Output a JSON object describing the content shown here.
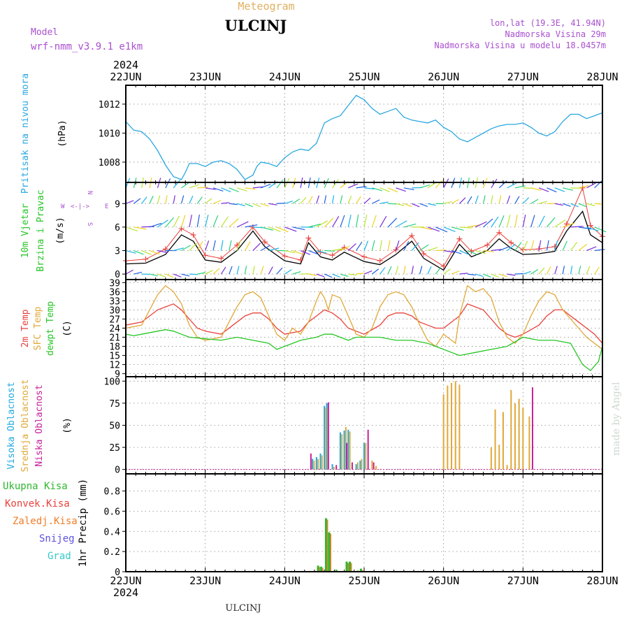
{
  "header": {
    "meteogram_label": "Meteogram",
    "station": "ULCINJ",
    "model_label": "Model",
    "model_name": "wrf-nmm_v3.9.1 e1km",
    "lonlat": "lon,lat (19.3E, 41.94N)",
    "elevation": "Nadmorska Visina 29m",
    "elevation_model": "Nadmorska Visina u modelu 18.0457m",
    "credit": "made by Angel",
    "footer_station": "ULCINJ"
  },
  "colors": {
    "pressure": "#2aa7e0",
    "temp2m": "#e8413c",
    "sfc": "#e0a838",
    "dewpt": "#26c626",
    "cloud_high": "#1fa8e0",
    "cloud_mid": "#e0a838",
    "cloud_low": "#c8209a",
    "precip_total": "#2fb82f",
    "precip_conv": "#e8413c",
    "precip_frz": "#f07d28",
    "snow": "#5d52e0",
    "hail": "#33c9c9",
    "wind_speed": "#000000",
    "wind_gust": "#e8413c",
    "meta": "#a94fcf",
    "meteogram_title": "#e0b060"
  },
  "chart_data": [
    {
      "type": "line",
      "id": "pressure",
      "ylabel_main": "Pritisak na nivou mora",
      "ylabel_unit": "(hPa)",
      "x_ticks": [
        "22JUN",
        "23JUN",
        "24JUN",
        "25JUN",
        "26JUN",
        "27JUN",
        "28JUN"
      ],
      "year": "2024",
      "y_ticks": [
        "1008",
        "1010",
        "1012"
      ],
      "ylim": [
        1006.6,
        1013.3
      ],
      "series": [
        {
          "x": [
            0,
            0.1,
            0.2,
            0.3,
            0.4,
            0.5,
            0.6,
            0.7,
            0.75,
            0.8,
            0.9,
            1.0,
            1.1,
            1.2,
            1.3,
            1.4,
            1.5,
            1.6,
            1.65,
            1.7,
            1.8,
            1.9,
            2.0,
            2.1,
            2.2,
            2.3,
            2.4,
            2.5,
            2.6,
            2.7,
            2.8,
            2.9,
            3.0,
            3.1,
            3.2,
            3.3,
            3.4,
            3.5,
            3.6,
            3.7,
            3.8,
            3.9,
            4.0,
            4.1,
            4.2,
            4.3,
            4.4,
            4.5,
            4.6,
            4.7,
            4.8,
            4.9,
            5.0,
            5.1,
            5.2,
            5.3,
            5.4,
            5.5,
            5.6,
            5.7,
            5.8,
            5.9,
            6.0
          ],
          "y": [
            1010.8,
            1010.2,
            1010.1,
            1009.6,
            1008.8,
            1007.8,
            1007.0,
            1006.8,
            1007.3,
            1007.9,
            1007.9,
            1007.7,
            1008.0,
            1008.1,
            1007.9,
            1007.5,
            1006.8,
            1007.1,
            1007.7,
            1008.0,
            1007.9,
            1007.7,
            1008.3,
            1008.7,
            1008.9,
            1008.8,
            1009.3,
            1010.7,
            1011.0,
            1011.2,
            1011.9,
            1012.6,
            1012.3,
            1011.7,
            1011.3,
            1011.5,
            1011.7,
            1011.1,
            1010.9,
            1010.8,
            1010.7,
            1010.9,
            1010.4,
            1010.1,
            1009.6,
            1009.4,
            1009.7,
            1010.0,
            1010.3,
            1010.5,
            1010.6,
            1010.6,
            1010.7,
            1010.4,
            1010.0,
            1009.8,
            1010.1,
            1010.8,
            1011.3,
            1011.3,
            1011.0,
            1011.2,
            1011.4
          ]
        }
      ]
    },
    {
      "type": "line",
      "id": "wind",
      "ylabel_main": "10m Vjetar",
      "ylabel_sub": "Brzina i Pravac",
      "ylabel_unit": "(m/s)",
      "compass": {
        "n": "N",
        "s": "S",
        "e": "E",
        "w": "W"
      },
      "y_ticks": [
        "0",
        "3",
        "6",
        "9"
      ],
      "ylim": [
        -0.7,
        11.7
      ],
      "series": [
        {
          "name": "speed",
          "x": [
            0,
            0.25,
            0.5,
            0.7,
            0.85,
            1.0,
            1.2,
            1.4,
            1.6,
            1.75,
            2.0,
            2.2,
            2.3,
            2.45,
            2.6,
            2.75,
            3.0,
            3.2,
            3.4,
            3.6,
            3.75,
            4.0,
            4.2,
            4.35,
            4.55,
            4.7,
            4.85,
            5.0,
            5.2,
            5.4,
            5.55,
            5.75,
            5.85,
            6.0
          ],
          "y": [
            1.3,
            1.4,
            2.5,
            5.0,
            4.2,
            1.8,
            1.5,
            3.0,
            5.5,
            3.5,
            1.7,
            1.3,
            4.0,
            2.2,
            1.8,
            2.8,
            1.6,
            1.2,
            2.5,
            4.2,
            2.0,
            0.5,
            3.8,
            2.2,
            3.0,
            4.5,
            3.3,
            2.5,
            2.6,
            2.9,
            5.5,
            8.0,
            5.0,
            4.0
          ]
        },
        {
          "name": "gust",
          "x": [
            0,
            0.25,
            0.5,
            0.7,
            0.85,
            1.0,
            1.2,
            1.4,
            1.6,
            1.75,
            2.0,
            2.2,
            2.3,
            2.45,
            2.6,
            2.75,
            3.0,
            3.2,
            3.4,
            3.6,
            3.75,
            4.0,
            4.2,
            4.35,
            4.55,
            4.7,
            4.85,
            5.0,
            5.2,
            5.4,
            5.55,
            5.75,
            5.85,
            6.0
          ],
          "y": [
            1.7,
            1.9,
            3.2,
            5.8,
            5.0,
            2.4,
            2.0,
            3.7,
            6.0,
            4.1,
            2.3,
            1.8,
            4.6,
            2.8,
            2.4,
            3.4,
            2.2,
            1.7,
            3.1,
            4.9,
            2.6,
            1.0,
            4.5,
            2.9,
            3.7,
            5.3,
            4.0,
            3.1,
            3.2,
            3.5,
            6.4,
            11.0,
            6.2,
            4.8
          ]
        }
      ]
    },
    {
      "type": "line",
      "id": "temperature",
      "ylabel_lines": [
        "2m Temp",
        "SFC Temp",
        "dewpt Temp"
      ],
      "ylabel_unit": "(C)",
      "y_ticks": [
        "9",
        "12",
        "15",
        "18",
        "21",
        "24",
        "27",
        "30",
        "33",
        "36",
        "39"
      ],
      "ylim": [
        8,
        40
      ],
      "series": [
        {
          "name": "2m Temp",
          "x": [
            0,
            0.2,
            0.4,
            0.5,
            0.6,
            0.7,
            0.8,
            0.9,
            1.0,
            1.2,
            1.4,
            1.5,
            1.6,
            1.7,
            1.8,
            1.9,
            2.0,
            2.2,
            2.3,
            2.4,
            2.5,
            2.6,
            2.7,
            2.8,
            2.9,
            3.0,
            3.2,
            3.3,
            3.4,
            3.5,
            3.6,
            3.7,
            3.8,
            3.9,
            4.0,
            4.2,
            4.3,
            4.4,
            4.5,
            4.6,
            4.7,
            4.8,
            4.9,
            5.0,
            5.2,
            5.3,
            5.4,
            5.5,
            5.6,
            5.7,
            5.8,
            5.9,
            6.0
          ],
          "y": [
            25,
            26,
            30,
            31,
            32,
            30,
            27,
            24,
            23,
            22,
            26,
            28,
            29,
            29,
            27,
            24,
            22,
            23,
            26,
            28,
            30,
            29,
            27,
            24,
            23,
            22,
            25,
            28,
            29,
            29,
            28,
            26,
            25,
            24,
            24,
            28,
            32,
            31,
            30,
            27,
            24,
            22,
            21,
            22,
            25,
            28,
            30,
            30,
            28,
            26,
            24,
            22,
            19
          ]
        },
        {
          "name": "SFC Temp",
          "x": [
            0,
            0.2,
            0.3,
            0.4,
            0.5,
            0.6,
            0.7,
            0.8,
            0.9,
            1.0,
            1.2,
            1.3,
            1.4,
            1.5,
            1.6,
            1.7,
            1.8,
            1.9,
            2.0,
            2.1,
            2.2,
            2.3,
            2.4,
            2.45,
            2.5,
            2.55,
            2.6,
            2.7,
            2.8,
            2.9,
            3.0,
            3.1,
            3.2,
            3.3,
            3.4,
            3.5,
            3.6,
            3.7,
            3.8,
            3.9,
            4.0,
            4.1,
            4.15,
            4.2,
            4.3,
            4.4,
            4.5,
            4.6,
            4.7,
            4.8,
            4.9,
            5.0,
            5.1,
            5.2,
            5.3,
            5.4,
            5.5,
            5.6,
            5.7,
            5.8,
            5.9,
            6.0
          ],
          "y": [
            24,
            25,
            30,
            35,
            38,
            36,
            32,
            25,
            21,
            20,
            21,
            26,
            31,
            35,
            36,
            34,
            28,
            22,
            20,
            24,
            22,
            26,
            33,
            36,
            34,
            30,
            35,
            34,
            28,
            22,
            21,
            24,
            31,
            35,
            36,
            35,
            31,
            25,
            20,
            18,
            22,
            20,
            19,
            28,
            38,
            36,
            37,
            34,
            26,
            21,
            19,
            22,
            28,
            33,
            36,
            35,
            30,
            27,
            24,
            21,
            19,
            17
          ]
        },
        {
          "name": "dewpt Temp",
          "x": [
            0,
            0.1,
            0.2,
            0.4,
            0.5,
            0.6,
            0.7,
            0.8,
            1.0,
            1.2,
            1.4,
            1.6,
            1.8,
            1.9,
            2.0,
            2.2,
            2.4,
            2.5,
            2.6,
            2.8,
            2.9,
            3.0,
            3.2,
            3.4,
            3.6,
            3.8,
            3.9,
            4.0,
            4.2,
            4.4,
            4.6,
            4.8,
            5.0,
            5.2,
            5.4,
            5.6,
            5.75,
            5.85,
            5.95,
            6.0
          ],
          "y": [
            22,
            21.5,
            22,
            23,
            23.5,
            23,
            22,
            21,
            20.5,
            20,
            21,
            20,
            19,
            17,
            18,
            20,
            21,
            22,
            22,
            20,
            21,
            21,
            21,
            20,
            20,
            19,
            18,
            17,
            15,
            16,
            17,
            18,
            21,
            20,
            20,
            19,
            12,
            10,
            13,
            18
          ]
        }
      ]
    },
    {
      "type": "bar",
      "id": "clouds",
      "ylabel_lines": [
        "Visoka Oblacnost",
        "Srednja Oblacnost",
        "Niska Oblacnost"
      ],
      "ylabel_unit": "(%)",
      "y_ticks": [
        "0",
        "25",
        "50",
        "75",
        "100"
      ],
      "ylim": [
        -5,
        105
      ],
      "series": [
        {
          "name": "Visoka Oblacnost",
          "x": [
            2.35,
            2.4,
            2.45,
            2.5,
            2.53,
            2.6,
            2.7,
            2.75,
            2.8,
            2.9,
            2.95,
            3.0
          ],
          "values": [
            12,
            14,
            18,
            72,
            75,
            6,
            42,
            44,
            45,
            6,
            10,
            30
          ]
        },
        {
          "name": "Srednja Oblacnost",
          "x": [
            2.37,
            2.42,
            2.47,
            2.52,
            2.62,
            2.72,
            2.77,
            2.82,
            2.92,
            2.97,
            3.02,
            3.1,
            3.15,
            4.0,
            4.05,
            4.1,
            4.15,
            4.2,
            4.6,
            4.65,
            4.7,
            4.75,
            4.8,
            4.85,
            4.9,
            4.95,
            5.0,
            5.08
          ],
          "values": [
            10,
            12,
            16,
            70,
            3,
            40,
            48,
            43,
            8,
            12,
            30,
            10,
            4,
            85,
            95,
            98,
            100,
            96,
            25,
            68,
            28,
            65,
            5,
            90,
            75,
            80,
            70,
            60
          ]
        },
        {
          "name": "Niska Oblacnost",
          "x": [
            2.33,
            2.55,
            2.65,
            2.78,
            2.85,
            3.05,
            3.12,
            5.12
          ],
          "values": [
            18,
            76,
            5,
            30,
            8,
            45,
            8,
            93
          ]
        }
      ]
    },
    {
      "type": "bar",
      "id": "precip",
      "legend": [
        "Ukupna Kisa",
        "Konvek.Kisa",
        "Zaledj.Kisa",
        "Snijeg",
        "Grad"
      ],
      "ylabel_unit": "1hr Precip (mm)",
      "y_ticks": [
        "0",
        "0.2",
        "0.4",
        "0.6",
        "0.8"
      ],
      "ylim": [
        0,
        0.97
      ],
      "x_ticks_bottom": [
        "22JUN",
        "23JUN",
        "24JUN",
        "25JUN",
        "26JUN",
        "27JUN",
        "28JUN"
      ],
      "year_bottom": "2024",
      "series": [
        {
          "name": "Ukupna Kisa",
          "x": [
            2.42,
            2.46,
            2.52,
            2.56,
            2.65,
            2.78,
            2.82,
            2.92,
            2.96
          ],
          "values": [
            0.06,
            0.05,
            0.53,
            0.39,
            0.02,
            0.1,
            0.1,
            0.01,
            0.03
          ]
        }
      ]
    }
  ]
}
